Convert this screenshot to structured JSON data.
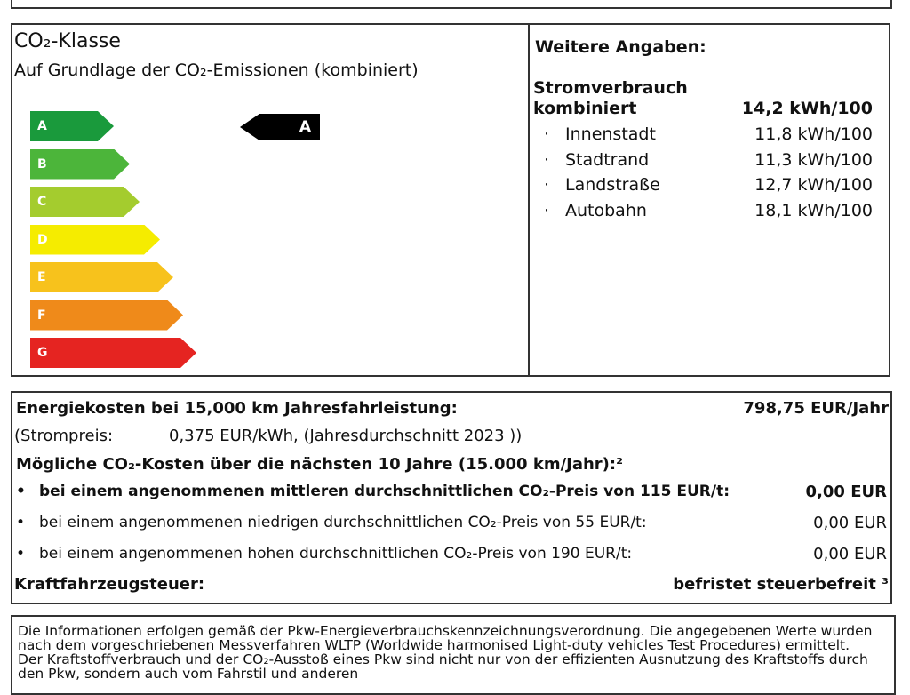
{
  "co2_class": {
    "title": "CO₂-Klasse",
    "subtitle": "Auf Grundlage der CO₂-Emissionen (kombiniert)",
    "classes": [
      {
        "label": "A",
        "color": "#1a9a3c"
      },
      {
        "label": "B",
        "color": "#4cb53a"
      },
      {
        "label": "C",
        "color": "#a4cc2e"
      },
      {
        "label": "D",
        "color": "#f5ec00"
      },
      {
        "label": "E",
        "color": "#f7c21c"
      },
      {
        "label": "F",
        "color": "#ef8a1a"
      },
      {
        "label": "G",
        "color": "#e52421"
      }
    ],
    "vehicle_class": "A"
  },
  "further_info": {
    "heading": "Weitere Angaben:",
    "consumption_label": [
      "Stromverbrauch",
      "kombiniert"
    ],
    "consumption_value": "14,2 kWh/100",
    "items": [
      {
        "name": "Innenstadt",
        "value": "11,8 kWh/100"
      },
      {
        "name": "Stadtrand",
        "value": "11,3 kWh/100"
      },
      {
        "name": "Landstraße",
        "value": "12,7 kWh/100"
      },
      {
        "name": "Autobahn",
        "value": "18,1 kWh/100"
      }
    ]
  },
  "costs": {
    "energy_label": "Energiekosten bei 15,000 km Jahresfahrleistung:",
    "energy_value": "798,75 EUR/Jahr",
    "price_label": "(Strompreis:",
    "price_value": "0,375 EUR/kWh, (Jahresdurchschnitt 2023 ))",
    "co2_heading": "Mögliche CO₂-Kosten über die nächsten 10 Jahre (15.000 km/Jahr):²",
    "scenarios": [
      {
        "label": "bei einem angenommenen mittleren durchschnittlichen CO₂-Preis von 115 EUR/t:",
        "value": "0,00 EUR"
      },
      {
        "label": "bei einem angenommenen niedrigen durchschnittlichen CO₂-Preis von 55 EUR/t:",
        "value": "0,00 EUR"
      },
      {
        "label": "bei einem angenommenen hohen durchschnittlichen CO₂-Preis von 190 EUR/t:",
        "value": "0,00 EUR"
      }
    ],
    "tax_label": "Kraftfahrzeugsteuer:",
    "tax_value": "befristet steuerbefreit ³"
  },
  "footer": "Die Informationen erfolgen gemäß der Pkw-Energieverbrauchskennzeichnungsverordnung. Die angegebenen Werte wurden nach dem vorgeschriebenen Messverfahren WLTP (Worldwide harmonised Light-duty vehicles Test Procedures) ermittelt. Der Kraftstoffverbrauch und der CO₂-Ausstoß eines Pkw sind nicht nur von der effizienten Ausnutzung des Kraftstoffs durch den Pkw, sondern auch vom Fahrstil und anderen"
}
